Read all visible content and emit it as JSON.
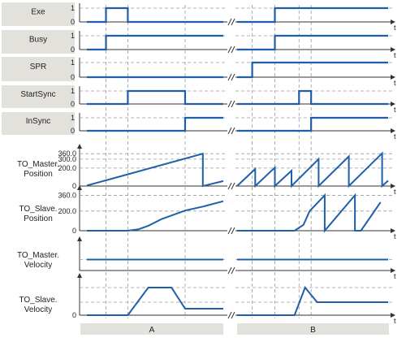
{
  "colors": {
    "signal": "#1f5fa8",
    "axis": "#333333",
    "dashed": "#9a9a9a",
    "label_box": "#e3e1dc",
    "section_box": "#e3e1dc"
  },
  "digital_signals": [
    {
      "label": "Exe",
      "tick_high": "1",
      "tick_low": "0",
      "time_label": "t",
      "left": {
        "initial": 0,
        "edges": [
          {
            "t": 0.14,
            "v": 1
          },
          {
            "t": 0.3,
            "v": 0
          }
        ]
      },
      "right": {
        "initial": 0,
        "edges": [
          {
            "t": 0.25,
            "v": 1
          }
        ]
      }
    },
    {
      "label": "Busy",
      "tick_high": "1",
      "tick_low": "0",
      "time_label": "t",
      "left": {
        "initial": 0,
        "edges": [
          {
            "t": 0.14,
            "v": 1
          }
        ]
      },
      "right": {
        "initial": 0,
        "edges": [
          {
            "t": 0.25,
            "v": 1
          }
        ]
      }
    },
    {
      "label": "SPR",
      "tick_high": "1",
      "tick_low": "0",
      "time_label": "t",
      "left": {
        "initial": 0,
        "edges": []
      },
      "right": {
        "initial": 0,
        "edges": [
          {
            "t": 0.1,
            "v": 1
          }
        ]
      }
    },
    {
      "label": "StartSync",
      "tick_high": "1",
      "tick_low": "0",
      "time_label": "t",
      "left": {
        "initial": 0,
        "edges": [
          {
            "t": 0.3,
            "v": 1
          },
          {
            "t": 0.72,
            "v": 0
          }
        ]
      },
      "right": {
        "initial": 0,
        "edges": [
          {
            "t": 0.41,
            "v": 1
          },
          {
            "t": 0.49,
            "v": 0
          }
        ]
      }
    },
    {
      "label": "InSync",
      "tick_high": "1",
      "tick_low": "0",
      "time_label": "t",
      "left": {
        "initial": 0,
        "edges": [
          {
            "t": 0.72,
            "v": 1
          }
        ]
      },
      "right": {
        "initial": 0,
        "edges": [
          {
            "t": 0.49,
            "v": 1
          }
        ]
      }
    }
  ],
  "analog_signals": [
    {
      "label_lines": [
        "TO_Master.",
        "Position"
      ],
      "ticks": [
        "360.0",
        "300.0",
        "200.0",
        "0"
      ],
      "tick_values": [
        360,
        300,
        200,
        0
      ],
      "max": 380,
      "time_label": "t",
      "left": [
        [
          0,
          5
        ],
        [
          0.85,
          360
        ],
        [
          0.85,
          0
        ],
        [
          1.0,
          55
        ]
      ],
      "right": [
        [
          0,
          0
        ],
        [
          0.12,
          190
        ],
        [
          0.12,
          0
        ],
        [
          0.25,
          205
        ],
        [
          0.25,
          0
        ],
        [
          0.36,
          170
        ],
        [
          0.36,
          0
        ],
        [
          0.54,
          300
        ],
        [
          0.54,
          0
        ],
        [
          0.74,
          330
        ],
        [
          0.74,
          0
        ],
        [
          0.96,
          365
        ],
        [
          0.96,
          0
        ],
        [
          1.0,
          60
        ]
      ]
    },
    {
      "label_lines": [
        "TO_Slave.",
        "Position"
      ],
      "ticks": [
        "360.0",
        "200.0",
        "0"
      ],
      "tick_values": [
        360,
        200,
        0
      ],
      "max": 380,
      "time_label": "t",
      "left": [
        [
          0,
          0
        ],
        [
          0.3,
          0
        ],
        [
          0.38,
          15
        ],
        [
          0.45,
          50
        ],
        [
          0.55,
          120
        ],
        [
          0.72,
          205
        ],
        [
          0.85,
          245
        ],
        [
          1.0,
          300
        ]
      ],
      "right": [
        [
          0,
          0
        ],
        [
          0.38,
          0
        ],
        [
          0.44,
          60
        ],
        [
          0.48,
          200
        ],
        [
          0.58,
          360
        ],
        [
          0.58,
          0
        ],
        [
          0.78,
          360
        ],
        [
          0.78,
          0
        ],
        [
          0.82,
          0
        ],
        [
          0.95,
          290
        ]
      ]
    },
    {
      "label_lines": [
        "TO_Master.",
        "Velocity"
      ],
      "ticks": [],
      "tick_values": [],
      "max": 100,
      "time_label": "t",
      "dashed_levels": [
        45
      ],
      "left": [
        [
          0,
          45
        ],
        [
          1.0,
          45
        ]
      ],
      "right": [
        [
          0,
          45
        ],
        [
          1.0,
          45
        ]
      ]
    },
    {
      "label_lines": [
        "TO_Slave.",
        "Velocity"
      ],
      "ticks": [
        "0"
      ],
      "tick_values": [
        0
      ],
      "max": 100,
      "time_label": "t",
      "dashed_levels": [
        85,
        40
      ],
      "left": [
        [
          0,
          0
        ],
        [
          0.3,
          0
        ],
        [
          0.45,
          85
        ],
        [
          0.62,
          85
        ],
        [
          0.72,
          20
        ],
        [
          1.0,
          20
        ]
      ],
      "right": [
        [
          0,
          0
        ],
        [
          0.38,
          0
        ],
        [
          0.45,
          85
        ],
        [
          0.53,
          40
        ],
        [
          1.0,
          40
        ]
      ]
    }
  ],
  "sections": [
    {
      "label": "A"
    },
    {
      "label": "B"
    }
  ],
  "break_mark": "//"
}
